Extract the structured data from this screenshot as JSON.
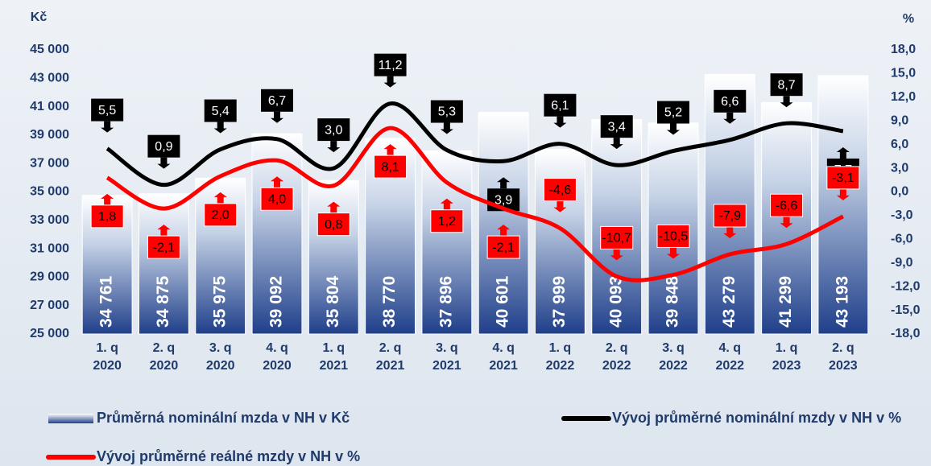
{
  "chart_data": {
    "type": "bar",
    "y_unit": "Kč",
    "y2_unit": "%",
    "categories": [
      "1. q 2020",
      "2. q 2020",
      "3. q 2020",
      "4. q 2020",
      "1. q 2021",
      "2. q 2021",
      "3. q 2021",
      "4. q 2021",
      "1. q 2022",
      "2. q 2022",
      "3. q 2022",
      "4. q 2022",
      "1. q 2023",
      "2. q 2023"
    ],
    "ylim": [
      25000,
      45000
    ],
    "yticks": [
      {
        "value": 25000,
        "label": "25 000"
      },
      {
        "value": 27000,
        "label": "27 000"
      },
      {
        "value": 29000,
        "label": "29 000"
      },
      {
        "value": 31000,
        "label": "31 000"
      },
      {
        "value": 33000,
        "label": "33 000"
      },
      {
        "value": 35000,
        "label": "35 000"
      },
      {
        "value": 37000,
        "label": "37 000"
      },
      {
        "value": 39000,
        "label": "39 000"
      },
      {
        "value": 41000,
        "label": "41 000"
      },
      {
        "value": 43000,
        "label": "43 000"
      },
      {
        "value": 45000,
        "label": "45 000"
      }
    ],
    "y2lim": [
      -18,
      18
    ],
    "y2ticks": [
      {
        "value": -18,
        "label": "-18,0"
      },
      {
        "value": -15,
        "label": "-15,0"
      },
      {
        "value": -12,
        "label": "-12,0"
      },
      {
        "value": -9,
        "label": "-9,0"
      },
      {
        "value": -6,
        "label": "-6,0"
      },
      {
        "value": -3,
        "label": "-3,0"
      },
      {
        "value": 0,
        "label": "0,0"
      },
      {
        "value": 3,
        "label": "3,0"
      },
      {
        "value": 6,
        "label": "6,0"
      },
      {
        "value": 9,
        "label": "9,0"
      },
      {
        "value": 12,
        "label": "12,0"
      },
      {
        "value": 15,
        "label": "15,0"
      },
      {
        "value": 18,
        "label": "18,0"
      }
    ],
    "series": [
      {
        "name": "Průměrná nominální mzda v NH v Kč",
        "type": "bar",
        "color": "#1f3f8a",
        "values": [
          34761,
          34875,
          35975,
          39092,
          35804,
          38770,
          37896,
          40601,
          37999,
          40093,
          39848,
          43279,
          41299,
          43193
        ],
        "value_labels": [
          "34 761",
          "34 875",
          "35 975",
          "39 092",
          "35 804",
          "38 770",
          "37 896",
          "40 601",
          "37 999",
          "40 093",
          "39 848",
          "43 279",
          "41 299",
          "43 193"
        ]
      },
      {
        "name": "Vývoj průměrné nominální mzdy v NH v %",
        "type": "line",
        "axis": "y2",
        "color": "#000000",
        "values": [
          5.5,
          0.9,
          5.4,
          6.7,
          3.0,
          11.2,
          5.3,
          3.9,
          6.1,
          3.4,
          5.2,
          6.6,
          8.7,
          7.7
        ],
        "value_labels": [
          "5,5",
          "0,9",
          "5,4",
          "6,7",
          "3,0",
          "11,2",
          "5,3",
          "3,9",
          "6,1",
          "3,4",
          "5,2",
          "6,6",
          "8,7",
          "7,7"
        ]
      },
      {
        "name": "Vývoj průměrné reálné mzdy v NH v %",
        "type": "line",
        "axis": "y2",
        "color": "#ff0000",
        "values": [
          1.8,
          -2.1,
          2.0,
          4.0,
          0.8,
          8.1,
          1.2,
          -2.1,
          -4.6,
          -10.7,
          -10.5,
          -7.9,
          -6.6,
          -3.1
        ],
        "value_labels": [
          "1,8",
          "-2,1",
          "2,0",
          "4,0",
          "0,8",
          "8,1",
          "1,2",
          "-2,1",
          "-4,6",
          "-10,7",
          "-10,5",
          "-7,9",
          "-6,6",
          "-3,1"
        ]
      }
    ]
  }
}
